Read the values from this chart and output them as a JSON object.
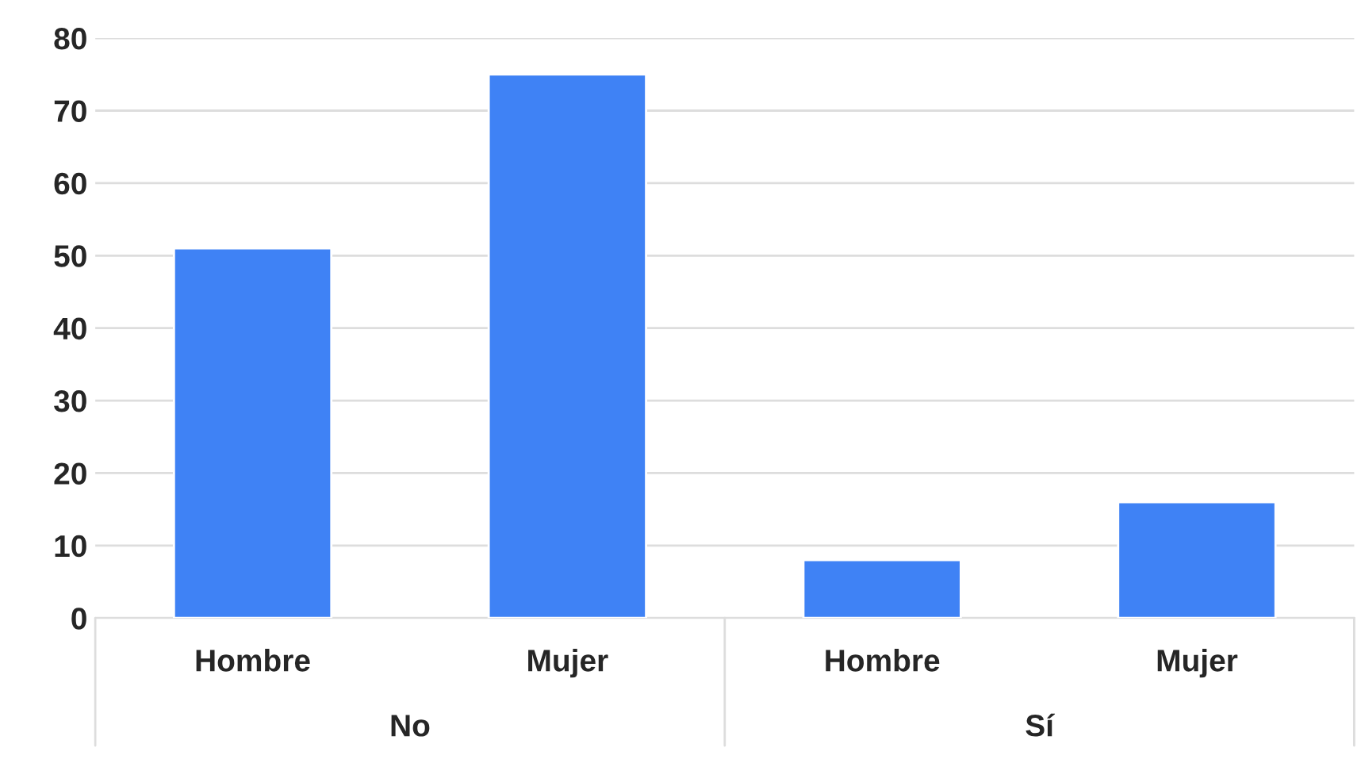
{
  "chart_data": {
    "type": "bar",
    "categories": [
      "Hombre",
      "Mujer",
      "Hombre",
      "Mujer"
    ],
    "values": [
      51,
      75,
      8,
      16
    ],
    "color": "#3f82f5",
    "ylim": [
      0,
      80
    ],
    "yticks": [
      0,
      10,
      20,
      30,
      40,
      50,
      60,
      70,
      80
    ],
    "grid": "y",
    "annotations": [
      "No",
      "Sí"
    ]
  }
}
